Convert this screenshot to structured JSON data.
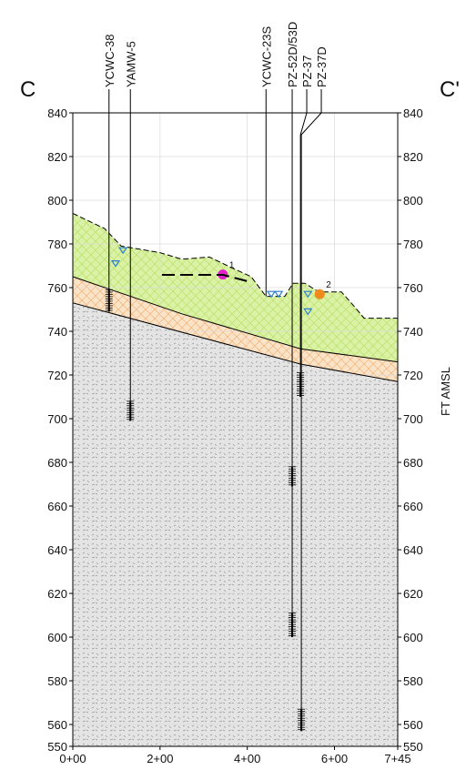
{
  "chart_data": {
    "type": "section",
    "left_title": "C",
    "right_title": "C'",
    "y2_label": "FT AMSL",
    "xlim": [
      0,
      745
    ],
    "ylim": [
      550,
      840
    ],
    "grid": true,
    "xticks": [
      {
        "value": 0,
        "label": "0+00"
      },
      {
        "value": 200,
        "label": "2+00"
      },
      {
        "value": 400,
        "label": "4+00"
      },
      {
        "value": 600,
        "label": "6+00"
      },
      {
        "value": 745,
        "label": "7+45"
      }
    ],
    "yticks": [
      550,
      560,
      580,
      600,
      620,
      640,
      660,
      680,
      700,
      720,
      740,
      760,
      780,
      800,
      820,
      840
    ],
    "layers": [
      {
        "color": "#d9f2a6",
        "hatch": "#b8dc5c",
        "dashed": true,
        "x": [
          0,
          73,
          111,
          200,
          250,
          313,
          376,
          409,
          443,
          486,
          505,
          532,
          564,
          616,
          647,
          668,
          745
        ],
        "values": [
          794,
          787,
          779,
          776,
          773,
          774,
          768,
          765,
          756,
          756,
          762,
          762,
          758,
          758,
          751,
          746,
          746
        ]
      },
      {
        "color": "#fbe3c8",
        "hatch": "#f2a866",
        "dashed": false,
        "x": [
          0,
          250,
          522,
          745
        ],
        "values": [
          765,
          748,
          732,
          726
        ]
      },
      {
        "color": "#e4e4e4",
        "hatch": "#9a9a9a",
        "dashed": false,
        "x": [
          0,
          522,
          745
        ],
        "values": [
          753,
          725,
          717
        ]
      }
    ],
    "wells": [
      {
        "name": "YCWC-38",
        "x": 83,
        "bottom": 749,
        "screens": [
          [
            759,
            749
          ]
        ]
      },
      {
        "name": "YAMW-5",
        "x": 132,
        "bottom": 699,
        "screens": [
          [
            708,
            699
          ]
        ]
      },
      {
        "name": "YCWC-23S",
        "x": 443,
        "bottom": 756,
        "screens": []
      },
      {
        "name": "PZ-52D/53D",
        "x": 503,
        "bottom": 600,
        "screens": [
          [
            678,
            669
          ],
          [
            611,
            600
          ]
        ]
      },
      {
        "name": "PZ-37",
        "x": 522,
        "bottom": 710,
        "screens": [
          [
            721,
            710
          ]
        ]
      },
      {
        "name": "PZ-37D",
        "x": 524,
        "bottom": 557,
        "screens": [
          [
            567,
            557
          ]
        ]
      }
    ],
    "water_levels": {
      "color": "#2a7fd4",
      "x": [
        115,
        98,
        455,
        472,
        539,
        539
      ],
      "values": [
        777,
        771,
        757,
        757,
        757,
        749
      ]
    },
    "points": [
      {
        "label": "1",
        "color": "#e020c8",
        "x": 344,
        "value": 766
      },
      {
        "label": "2",
        "color": "#f08a1c",
        "x": 566,
        "value": 757
      }
    ]
  }
}
